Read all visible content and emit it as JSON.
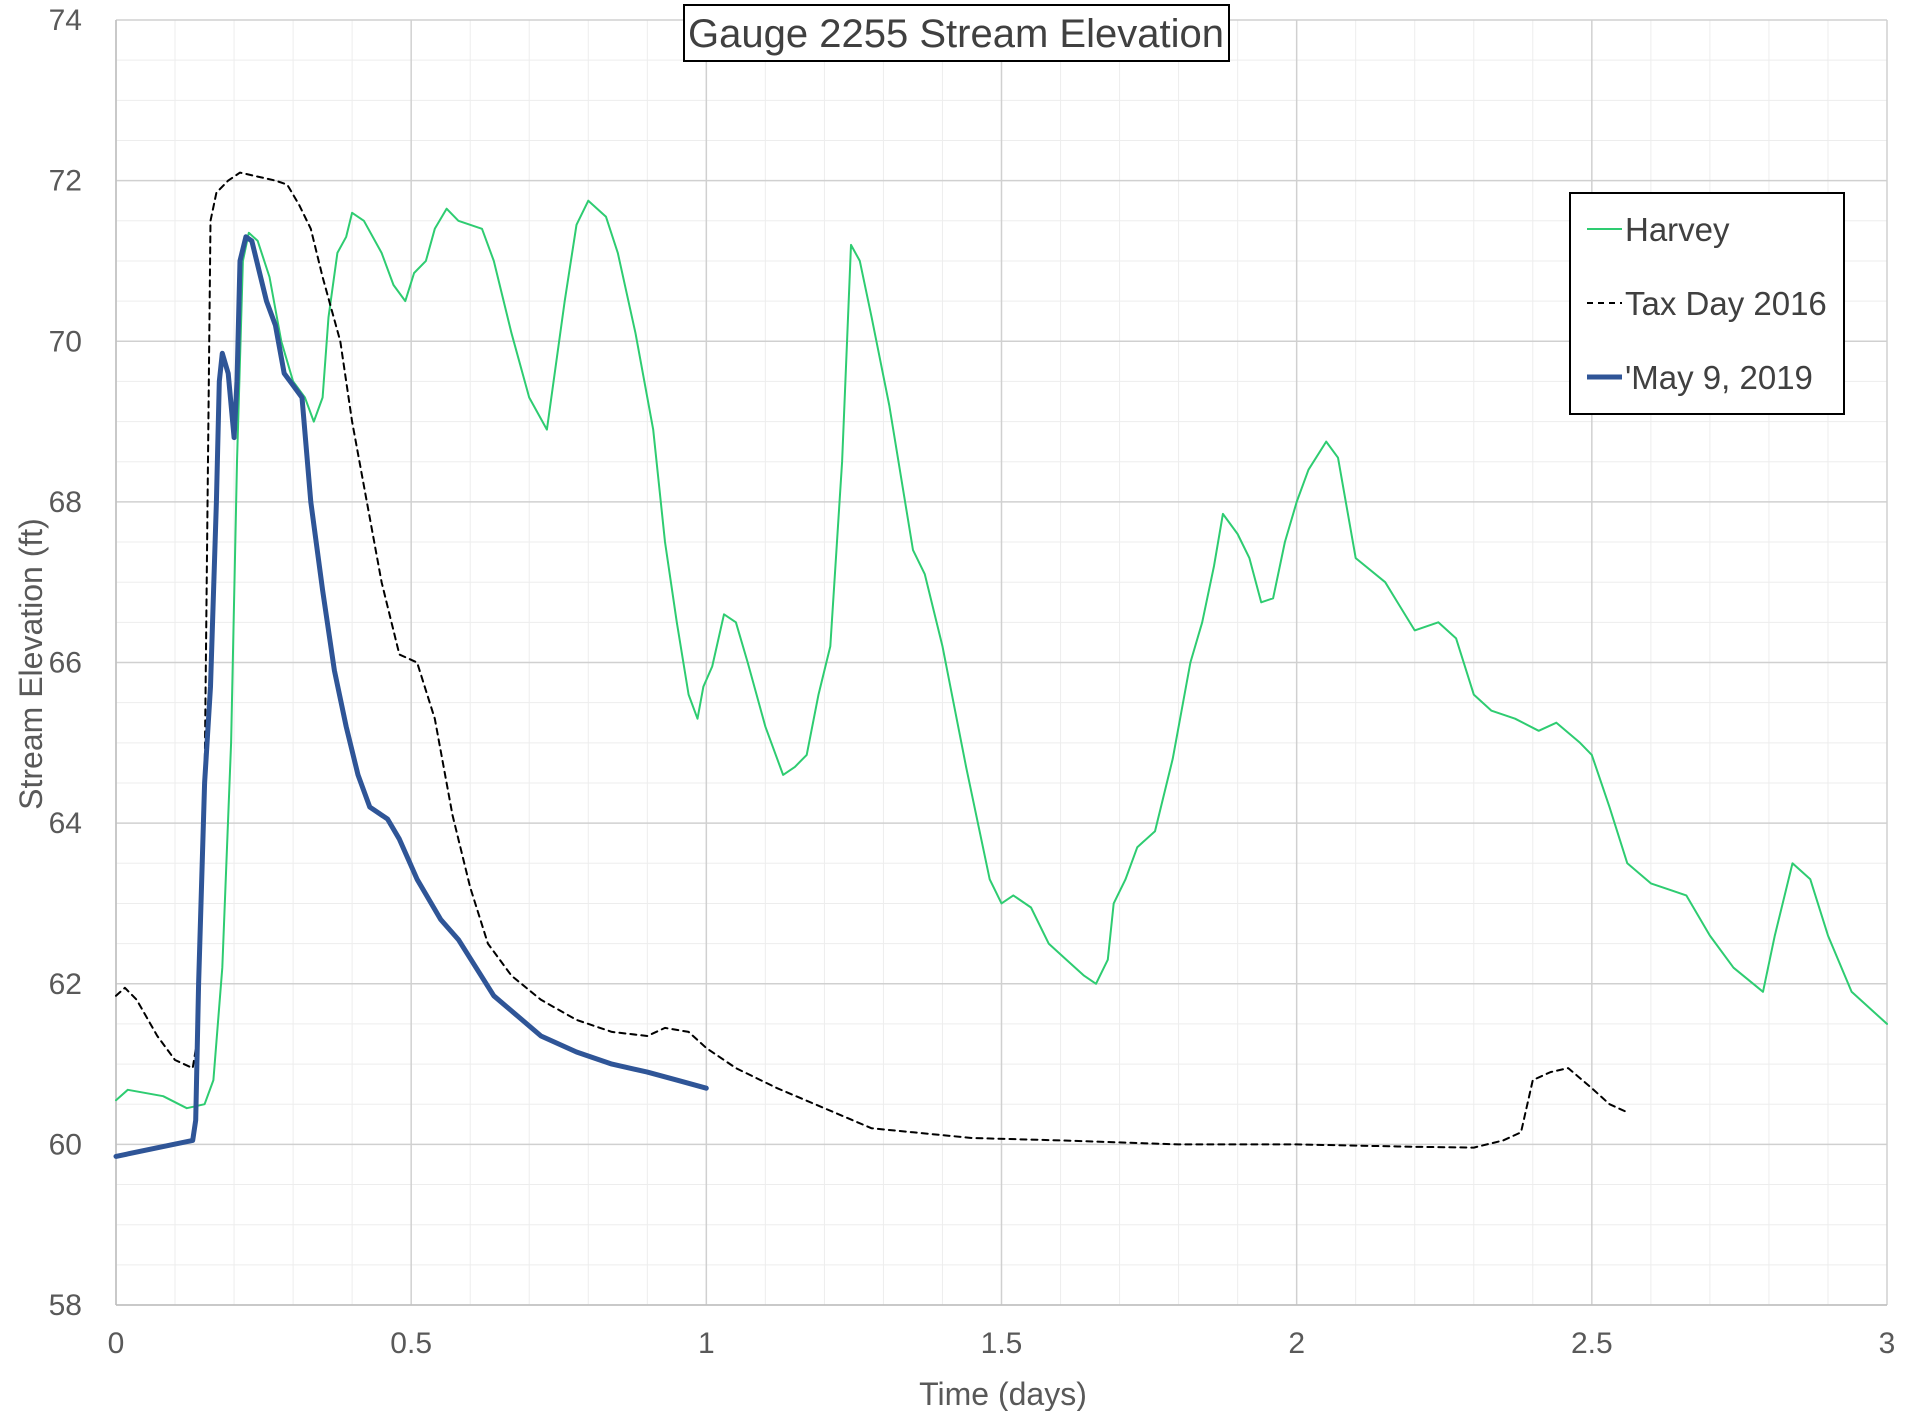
{
  "chart_data": {
    "type": "line",
    "title": "Gauge 2255 Stream Elevation",
    "xlabel": "Time (days)",
    "ylabel": "Stream Elevation (ft)",
    "xlim": [
      0,
      3
    ],
    "ylim": [
      58,
      74
    ],
    "x_ticks": [
      0,
      0.5,
      1,
      1.5,
      2,
      2.5,
      3
    ],
    "x_tick_labels": [
      "0",
      "0.5",
      "1",
      "1.5",
      "2",
      "2.5",
      "3"
    ],
    "y_ticks": [
      58,
      60,
      62,
      64,
      66,
      68,
      70,
      72,
      74
    ],
    "y_tick_labels": [
      "58",
      "60",
      "62",
      "64",
      "66",
      "68",
      "70",
      "72",
      "74"
    ],
    "major_grid": true,
    "minor_grid": true,
    "legend_position": "top-right",
    "series": [
      {
        "name": "Harvey",
        "color": "#2ecc71",
        "style": "solid-thin",
        "points": [
          [
            0,
            60.55
          ],
          [
            0.02,
            60.68
          ],
          [
            0.08,
            60.6
          ],
          [
            0.12,
            60.45
          ],
          [
            0.15,
            60.5
          ],
          [
            0.165,
            60.8
          ],
          [
            0.18,
            62.2
          ],
          [
            0.195,
            65.0
          ],
          [
            0.205,
            68.5
          ],
          [
            0.215,
            71.0
          ],
          [
            0.225,
            71.35
          ],
          [
            0.24,
            71.25
          ],
          [
            0.26,
            70.8
          ],
          [
            0.28,
            70.0
          ],
          [
            0.3,
            69.5
          ],
          [
            0.32,
            69.3
          ],
          [
            0.335,
            69.0
          ],
          [
            0.35,
            69.3
          ],
          [
            0.36,
            70.3
          ],
          [
            0.375,
            71.1
          ],
          [
            0.39,
            71.3
          ],
          [
            0.4,
            71.6
          ],
          [
            0.42,
            71.5
          ],
          [
            0.45,
            71.1
          ],
          [
            0.47,
            70.7
          ],
          [
            0.49,
            70.5
          ],
          [
            0.505,
            70.85
          ],
          [
            0.525,
            71.0
          ],
          [
            0.54,
            71.4
          ],
          [
            0.56,
            71.65
          ],
          [
            0.58,
            71.5
          ],
          [
            0.62,
            71.4
          ],
          [
            0.64,
            71.0
          ],
          [
            0.67,
            70.1
          ],
          [
            0.7,
            69.3
          ],
          [
            0.73,
            68.9
          ],
          [
            0.76,
            70.5
          ],
          [
            0.78,
            71.45
          ],
          [
            0.8,
            71.75
          ],
          [
            0.83,
            71.55
          ],
          [
            0.85,
            71.1
          ],
          [
            0.88,
            70.1
          ],
          [
            0.91,
            68.9
          ],
          [
            0.93,
            67.5
          ],
          [
            0.95,
            66.5
          ],
          [
            0.97,
            65.6
          ],
          [
            0.985,
            65.3
          ],
          [
            0.995,
            65.7
          ],
          [
            1.01,
            65.95
          ],
          [
            1.03,
            66.6
          ],
          [
            1.05,
            66.5
          ],
          [
            1.07,
            66.0
          ],
          [
            1.1,
            65.2
          ],
          [
            1.13,
            64.6
          ],
          [
            1.15,
            64.7
          ],
          [
            1.17,
            64.85
          ],
          [
            1.19,
            65.6
          ],
          [
            1.21,
            66.2
          ],
          [
            1.23,
            68.5
          ],
          [
            1.245,
            71.2
          ],
          [
            1.26,
            71.0
          ],
          [
            1.28,
            70.3
          ],
          [
            1.31,
            69.2
          ],
          [
            1.35,
            67.4
          ],
          [
            1.37,
            67.1
          ],
          [
            1.4,
            66.2
          ],
          [
            1.44,
            64.7
          ],
          [
            1.48,
            63.3
          ],
          [
            1.5,
            63.0
          ],
          [
            1.52,
            63.1
          ],
          [
            1.55,
            62.95
          ],
          [
            1.58,
            62.5
          ],
          [
            1.61,
            62.3
          ],
          [
            1.64,
            62.1
          ],
          [
            1.66,
            62.0
          ],
          [
            1.68,
            62.3
          ],
          [
            1.69,
            63.0
          ],
          [
            1.71,
            63.3
          ],
          [
            1.73,
            63.7
          ],
          [
            1.76,
            63.9
          ],
          [
            1.79,
            64.8
          ],
          [
            1.82,
            66.0
          ],
          [
            1.84,
            66.5
          ],
          [
            1.86,
            67.2
          ],
          [
            1.875,
            67.85
          ],
          [
            1.9,
            67.6
          ],
          [
            1.92,
            67.3
          ],
          [
            1.94,
            66.75
          ],
          [
            1.96,
            66.8
          ],
          [
            1.98,
            67.5
          ],
          [
            2.0,
            68.0
          ],
          [
            2.02,
            68.4
          ],
          [
            2.05,
            68.75
          ],
          [
            2.07,
            68.55
          ],
          [
            2.1,
            67.3
          ],
          [
            2.15,
            67.0
          ],
          [
            2.2,
            66.4
          ],
          [
            2.24,
            66.5
          ],
          [
            2.27,
            66.3
          ],
          [
            2.3,
            65.6
          ],
          [
            2.33,
            65.4
          ],
          [
            2.37,
            65.3
          ],
          [
            2.41,
            65.15
          ],
          [
            2.44,
            65.25
          ],
          [
            2.48,
            65.0
          ],
          [
            2.5,
            64.85
          ],
          [
            2.53,
            64.2
          ],
          [
            2.56,
            63.5
          ],
          [
            2.6,
            63.25
          ],
          [
            2.66,
            63.1
          ],
          [
            2.7,
            62.6
          ],
          [
            2.74,
            62.2
          ],
          [
            2.79,
            61.9
          ],
          [
            2.81,
            62.6
          ],
          [
            2.84,
            63.5
          ],
          [
            2.87,
            63.3
          ],
          [
            2.9,
            62.6
          ],
          [
            2.94,
            61.9
          ],
          [
            3.0,
            61.5
          ]
        ]
      },
      {
        "name": "Tax Day 2016",
        "color": "#000000",
        "style": "dashed",
        "points": [
          [
            0,
            61.85
          ],
          [
            0.015,
            61.95
          ],
          [
            0.035,
            61.8
          ],
          [
            0.07,
            61.35
          ],
          [
            0.1,
            61.05
          ],
          [
            0.13,
            60.95
          ],
          [
            0.14,
            61.4
          ],
          [
            0.15,
            64.5
          ],
          [
            0.16,
            71.5
          ],
          [
            0.17,
            71.85
          ],
          [
            0.19,
            72.0
          ],
          [
            0.21,
            72.1
          ],
          [
            0.24,
            72.05
          ],
          [
            0.27,
            72.0
          ],
          [
            0.29,
            71.95
          ],
          [
            0.31,
            71.7
          ],
          [
            0.33,
            71.4
          ],
          [
            0.35,
            70.8
          ],
          [
            0.38,
            70.0
          ],
          [
            0.4,
            69.0
          ],
          [
            0.43,
            67.8
          ],
          [
            0.45,
            67.0
          ],
          [
            0.48,
            66.1
          ],
          [
            0.51,
            66.0
          ],
          [
            0.54,
            65.3
          ],
          [
            0.57,
            64.1
          ],
          [
            0.6,
            63.2
          ],
          [
            0.63,
            62.5
          ],
          [
            0.67,
            62.1
          ],
          [
            0.72,
            61.8
          ],
          [
            0.78,
            61.55
          ],
          [
            0.84,
            61.4
          ],
          [
            0.9,
            61.35
          ],
          [
            0.93,
            61.45
          ],
          [
            0.97,
            61.4
          ],
          [
            1.0,
            61.2
          ],
          [
            1.05,
            60.95
          ],
          [
            1.12,
            60.7
          ],
          [
            1.2,
            60.45
          ],
          [
            1.28,
            60.2
          ],
          [
            1.35,
            60.15
          ],
          [
            1.45,
            60.08
          ],
          [
            1.6,
            60.05
          ],
          [
            1.8,
            60.0
          ],
          [
            2.0,
            60.0
          ],
          [
            2.2,
            59.97
          ],
          [
            2.3,
            59.96
          ],
          [
            2.35,
            60.05
          ],
          [
            2.38,
            60.15
          ],
          [
            2.4,
            60.8
          ],
          [
            2.43,
            60.9
          ],
          [
            2.46,
            60.95
          ],
          [
            2.5,
            60.7
          ],
          [
            2.53,
            60.5
          ],
          [
            2.56,
            60.4
          ]
        ]
      },
      {
        "name": "'May 9, 2019",
        "color": "#2f5597",
        "style": "solid-thick",
        "points": [
          [
            0,
            59.85
          ],
          [
            0.13,
            60.05
          ],
          [
            0.135,
            60.3
          ],
          [
            0.14,
            62.0
          ],
          [
            0.15,
            64.5
          ],
          [
            0.16,
            65.7
          ],
          [
            0.17,
            68.0
          ],
          [
            0.175,
            69.5
          ],
          [
            0.18,
            69.85
          ],
          [
            0.19,
            69.6
          ],
          [
            0.2,
            68.8
          ],
          [
            0.205,
            69.5
          ],
          [
            0.21,
            71.0
          ],
          [
            0.22,
            71.3
          ],
          [
            0.23,
            71.25
          ],
          [
            0.245,
            70.8
          ],
          [
            0.255,
            70.5
          ],
          [
            0.27,
            70.2
          ],
          [
            0.285,
            69.6
          ],
          [
            0.3,
            69.45
          ],
          [
            0.315,
            69.3
          ],
          [
            0.33,
            68.0
          ],
          [
            0.35,
            66.9
          ],
          [
            0.37,
            65.9
          ],
          [
            0.39,
            65.2
          ],
          [
            0.41,
            64.6
          ],
          [
            0.43,
            64.2
          ],
          [
            0.46,
            64.05
          ],
          [
            0.48,
            63.8
          ],
          [
            0.51,
            63.3
          ],
          [
            0.55,
            62.8
          ],
          [
            0.58,
            62.55
          ],
          [
            0.61,
            62.2
          ],
          [
            0.64,
            61.85
          ],
          [
            0.68,
            61.6
          ],
          [
            0.72,
            61.35
          ],
          [
            0.78,
            61.15
          ],
          [
            0.84,
            61.0
          ],
          [
            0.9,
            60.9
          ],
          [
            0.95,
            60.8
          ],
          [
            1.0,
            60.7
          ]
        ]
      }
    ]
  }
}
